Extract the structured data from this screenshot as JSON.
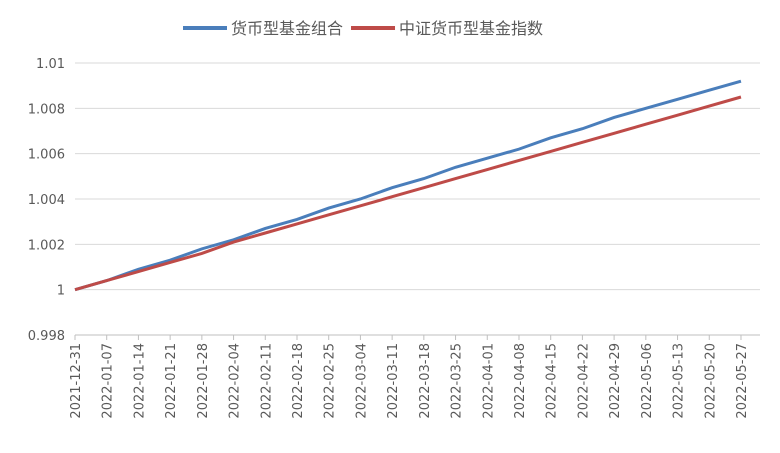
{
  "chart_data": {
    "type": "line",
    "categories": [
      "2021-12-31",
      "2022-01-07",
      "2022-01-14",
      "2022-01-21",
      "2022-01-28",
      "2022-02-04",
      "2022-02-11",
      "2022-02-18",
      "2022-02-25",
      "2022-03-04",
      "2022-03-11",
      "2022-03-18",
      "2022-03-25",
      "2022-04-01",
      "2022-04-08",
      "2022-04-15",
      "2022-04-22",
      "2022-04-29",
      "2022-05-06",
      "2022-05-13",
      "2022-05-20",
      "2022-05-27"
    ],
    "series": [
      {
        "name": "货币型基金组合",
        "color": "#4a7ebb",
        "values": [
          1.0,
          1.0004,
          1.0009,
          1.0013,
          1.0018,
          1.0022,
          1.0027,
          1.0031,
          1.0036,
          1.004,
          1.0045,
          1.0049,
          1.0054,
          1.0058,
          1.0062,
          1.0067,
          1.0071,
          1.0076,
          1.008,
          1.0084,
          1.0088,
          1.0092
        ]
      },
      {
        "name": "中证货币型基金指数",
        "color": "#be4b48",
        "values": [
          1.0,
          1.0004,
          1.0008,
          1.0012,
          1.0016,
          1.0021,
          1.0025,
          1.0029,
          1.0033,
          1.0037,
          1.0041,
          1.0045,
          1.0049,
          1.0053,
          1.0057,
          1.0061,
          1.0065,
          1.0069,
          1.0073,
          1.0077,
          1.0081,
          1.0085
        ]
      }
    ],
    "ylim": [
      0.998,
      1.01
    ],
    "yticks": [
      0.998,
      1,
      1.002,
      1.004,
      1.006,
      1.008,
      1.01
    ],
    "grid": true
  }
}
